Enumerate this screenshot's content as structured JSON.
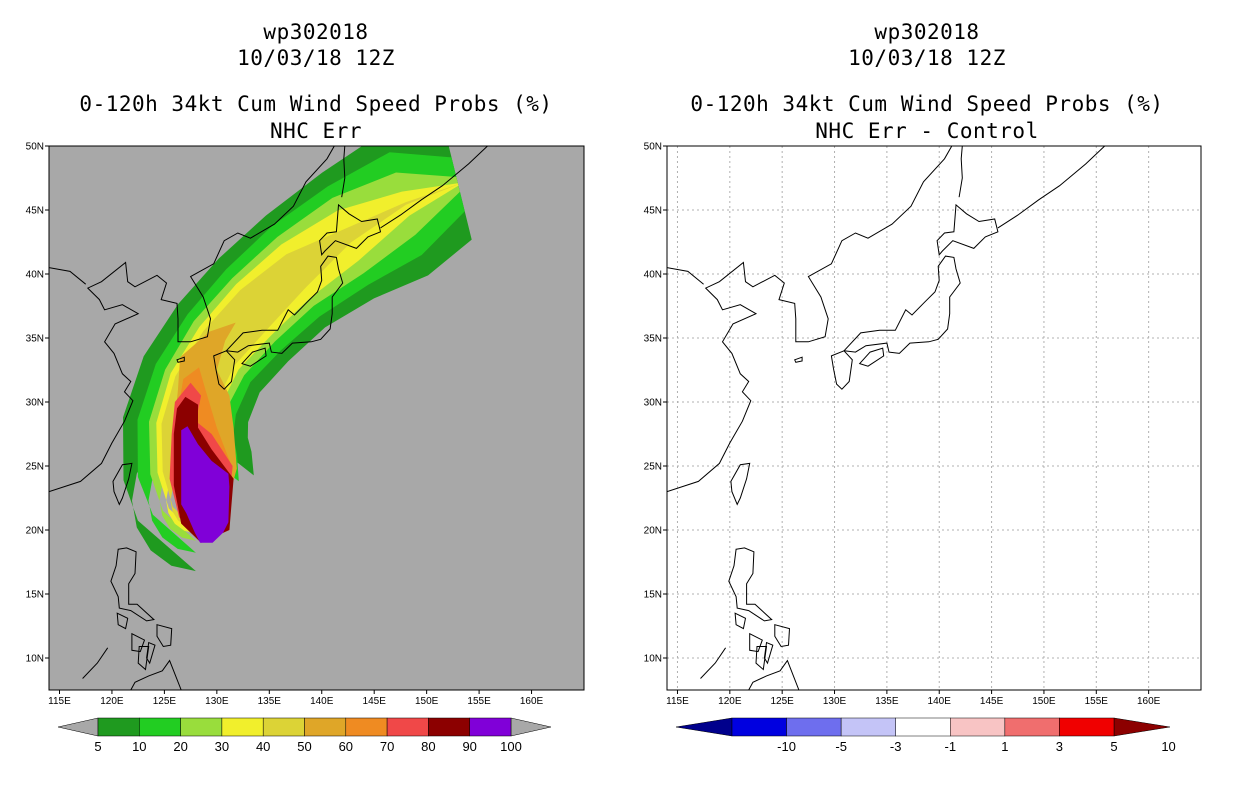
{
  "chart_data": [
    {
      "type": "filled-contour-map",
      "storm_id": "wp302018",
      "datetime": "10/03/18 12Z",
      "title": "0-120h 34kt Cum Wind Speed Probs (%)",
      "subtitle": "NHC Err",
      "background_color": "#a8a8a8",
      "x_axis": {
        "range": [
          114,
          165
        ],
        "units": "deg E",
        "tick_labels": [
          "115E",
          "120E",
          "125E",
          "130E",
          "135E",
          "140E",
          "145E",
          "150E",
          "155E",
          "160E"
        ]
      },
      "y_axis": {
        "range": [
          7.5,
          50
        ],
        "units": "deg N",
        "tick_labels": [
          "10N",
          "15N",
          "20N",
          "25N",
          "30N",
          "35N",
          "40N",
          "45N",
          "50N"
        ]
      },
      "colorbar": {
        "labels": [
          "5",
          "10",
          "20",
          "30",
          "40",
          "50",
          "60",
          "70",
          "80",
          "90",
          "100"
        ],
        "colors": [
          "#1f9a1f",
          "#22cd22",
          "#99dd3c",
          "#f1ef2c",
          "#dcd336",
          "#dfa628",
          "#ef8b22",
          "#f04848",
          "#8c0000",
          "#8000d8"
        ],
        "end_colors": [
          "#a8a8a8",
          "#a8a8a8"
        ]
      },
      "contour_levels": [
        5,
        10,
        20,
        30,
        40,
        50,
        60,
        70,
        80,
        90
      ]
    },
    {
      "type": "filled-contour-map",
      "storm_id": "wp302018",
      "datetime": "10/03/18 12Z",
      "title": "0-120h 34kt Cum Wind Speed Probs (%)",
      "subtitle": "NHC Err - Control",
      "background_color": "#ffffff",
      "grid": true,
      "x_axis": {
        "range": [
          114,
          165
        ],
        "units": "deg E",
        "tick_labels": [
          "115E",
          "120E",
          "125E",
          "130E",
          "135E",
          "140E",
          "145E",
          "150E",
          "155E",
          "160E"
        ]
      },
      "y_axis": {
        "range": [
          7.5,
          50
        ],
        "units": "deg N",
        "tick_labels": [
          "10N",
          "15N",
          "20N",
          "25N",
          "30N",
          "35N",
          "40N",
          "45N",
          "50N"
        ]
      },
      "colorbar": {
        "labels": [
          "-10",
          "-5",
          "-3",
          "-1",
          "1",
          "3",
          "5",
          "10"
        ],
        "colors": [
          "#0000e0",
          "#6e6eee",
          "#c4c4f7",
          "#ffffff",
          "#f8c4c4",
          "#f06e6e",
          "#f00000"
        ],
        "end_colors": [
          "#00008c",
          "#8c0000"
        ]
      }
    }
  ]
}
